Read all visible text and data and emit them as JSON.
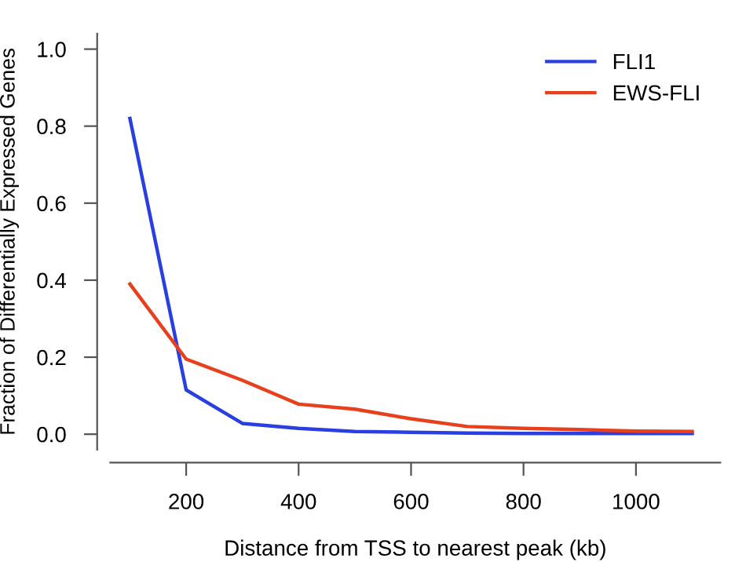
{
  "chart_data": {
    "type": "line",
    "xlabel": "Distance from TSS to nearest peak (kb)",
    "ylabel": "Fraction of Differentially Expressed Genes",
    "x": [
      100,
      200,
      300,
      400,
      500,
      600,
      700,
      800,
      900,
      1000,
      1100
    ],
    "series": [
      {
        "name": "FLI1",
        "color": "#2a3fe0",
        "values": [
          0.82,
          0.115,
          0.028,
          0.015,
          0.007,
          0.005,
          0.003,
          0.002,
          0.002,
          0.002,
          0.002
        ]
      },
      {
        "name": "EWS-FLI",
        "color": "#e8401c",
        "values": [
          0.39,
          0.195,
          0.14,
          0.078,
          0.065,
          0.04,
          0.02,
          0.015,
          0.012,
          0.008,
          0.007
        ]
      }
    ],
    "xlim": [
      65,
      1150
    ],
    "ylim": [
      -0.04,
      1.04
    ],
    "xticks": [
      200,
      400,
      600,
      800,
      1000
    ],
    "yticks": [
      {
        "value": 0,
        "label": "0.0"
      },
      {
        "value": 0.2,
        "label": "0.2"
      },
      {
        "value": 0.4,
        "label": "0.4"
      },
      {
        "value": 0.6,
        "label": "0.6"
      },
      {
        "value": 0.8,
        "label": "0.8"
      },
      {
        "value": 1,
        "label": "1.0"
      }
    ],
    "grid": false,
    "legend": "top right",
    "marker": "none",
    "line_style": "solid"
  }
}
